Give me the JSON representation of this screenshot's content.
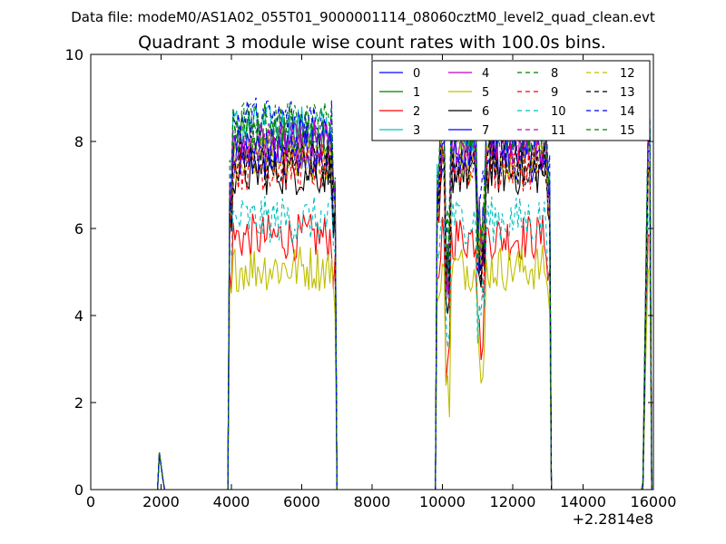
{
  "chart_data": {
    "type": "line",
    "suptitle": "Data file: modeM0/AS1A02_055T01_9000001114_08060cztM0_level2_quad_clean.evt",
    "title": "Quadrant 3 module wise count rates with 100.0s bins.",
    "xlabel": "",
    "ylabel": "",
    "xlim": [
      0,
      16000
    ],
    "ylim": [
      0,
      10
    ],
    "x_offset_label": "+2.2814e8",
    "xticks": [
      0,
      2000,
      4000,
      6000,
      8000,
      10000,
      12000,
      14000,
      16000
    ],
    "xtick_labels": [
      "0",
      "2000",
      "4000",
      "6000",
      "8000",
      "10000",
      "12000",
      "14000",
      "16000"
    ],
    "yticks": [
      0,
      2,
      4,
      6,
      8,
      10
    ],
    "ytick_labels": [
      "0",
      "2",
      "4",
      "6",
      "8",
      "10"
    ],
    "grid": false,
    "legend_position": "upper-right",
    "legend_columns": 4,
    "segments": [
      {
        "start": 1950,
        "end": 2050
      },
      {
        "start": 3950,
        "end": 6950
      },
      {
        "start": 9850,
        "end": 13050
      },
      {
        "start": 15700,
        "end": 15900
      }
    ],
    "series": [
      {
        "name": "0",
        "color": "#0000ff",
        "dash": "solid",
        "level": 7.6
      },
      {
        "name": "1",
        "color": "#008000",
        "dash": "solid",
        "level": 8.1
      },
      {
        "name": "2",
        "color": "#ff0000",
        "dash": "solid",
        "level": 5.8
      },
      {
        "name": "3",
        "color": "#00bfbf",
        "dash": "solid",
        "level": 8.3
      },
      {
        "name": "4",
        "color": "#bf00bf",
        "dash": "solid",
        "level": 7.9
      },
      {
        "name": "5",
        "color": "#bfbf00",
        "dash": "solid",
        "level": 5.1
      },
      {
        "name": "6",
        "color": "#000000",
        "dash": "solid",
        "level": 7.3
      },
      {
        "name": "7",
        "color": "#0000ff",
        "dash": "solid",
        "level": 7.8
      },
      {
        "name": "8",
        "color": "#008000",
        "dash": "dashed",
        "level": 8.4
      },
      {
        "name": "9",
        "color": "#ff0000",
        "dash": "dashed",
        "level": 7.4
      },
      {
        "name": "10",
        "color": "#00bfbf",
        "dash": "dashed",
        "level": 6.2
      },
      {
        "name": "11",
        "color": "#bf00bf",
        "dash": "dashed",
        "level": 8.0
      },
      {
        "name": "12",
        "color": "#bfbf00",
        "dash": "dashed",
        "level": 7.6
      },
      {
        "name": "13",
        "color": "#000000",
        "dash": "dashed",
        "level": 7.5
      },
      {
        "name": "14",
        "color": "#0000ff",
        "dash": "dashed",
        "level": 8.5
      },
      {
        "name": "15",
        "color": "#008000",
        "dash": "dashed",
        "level": 8.3
      }
    ]
  }
}
